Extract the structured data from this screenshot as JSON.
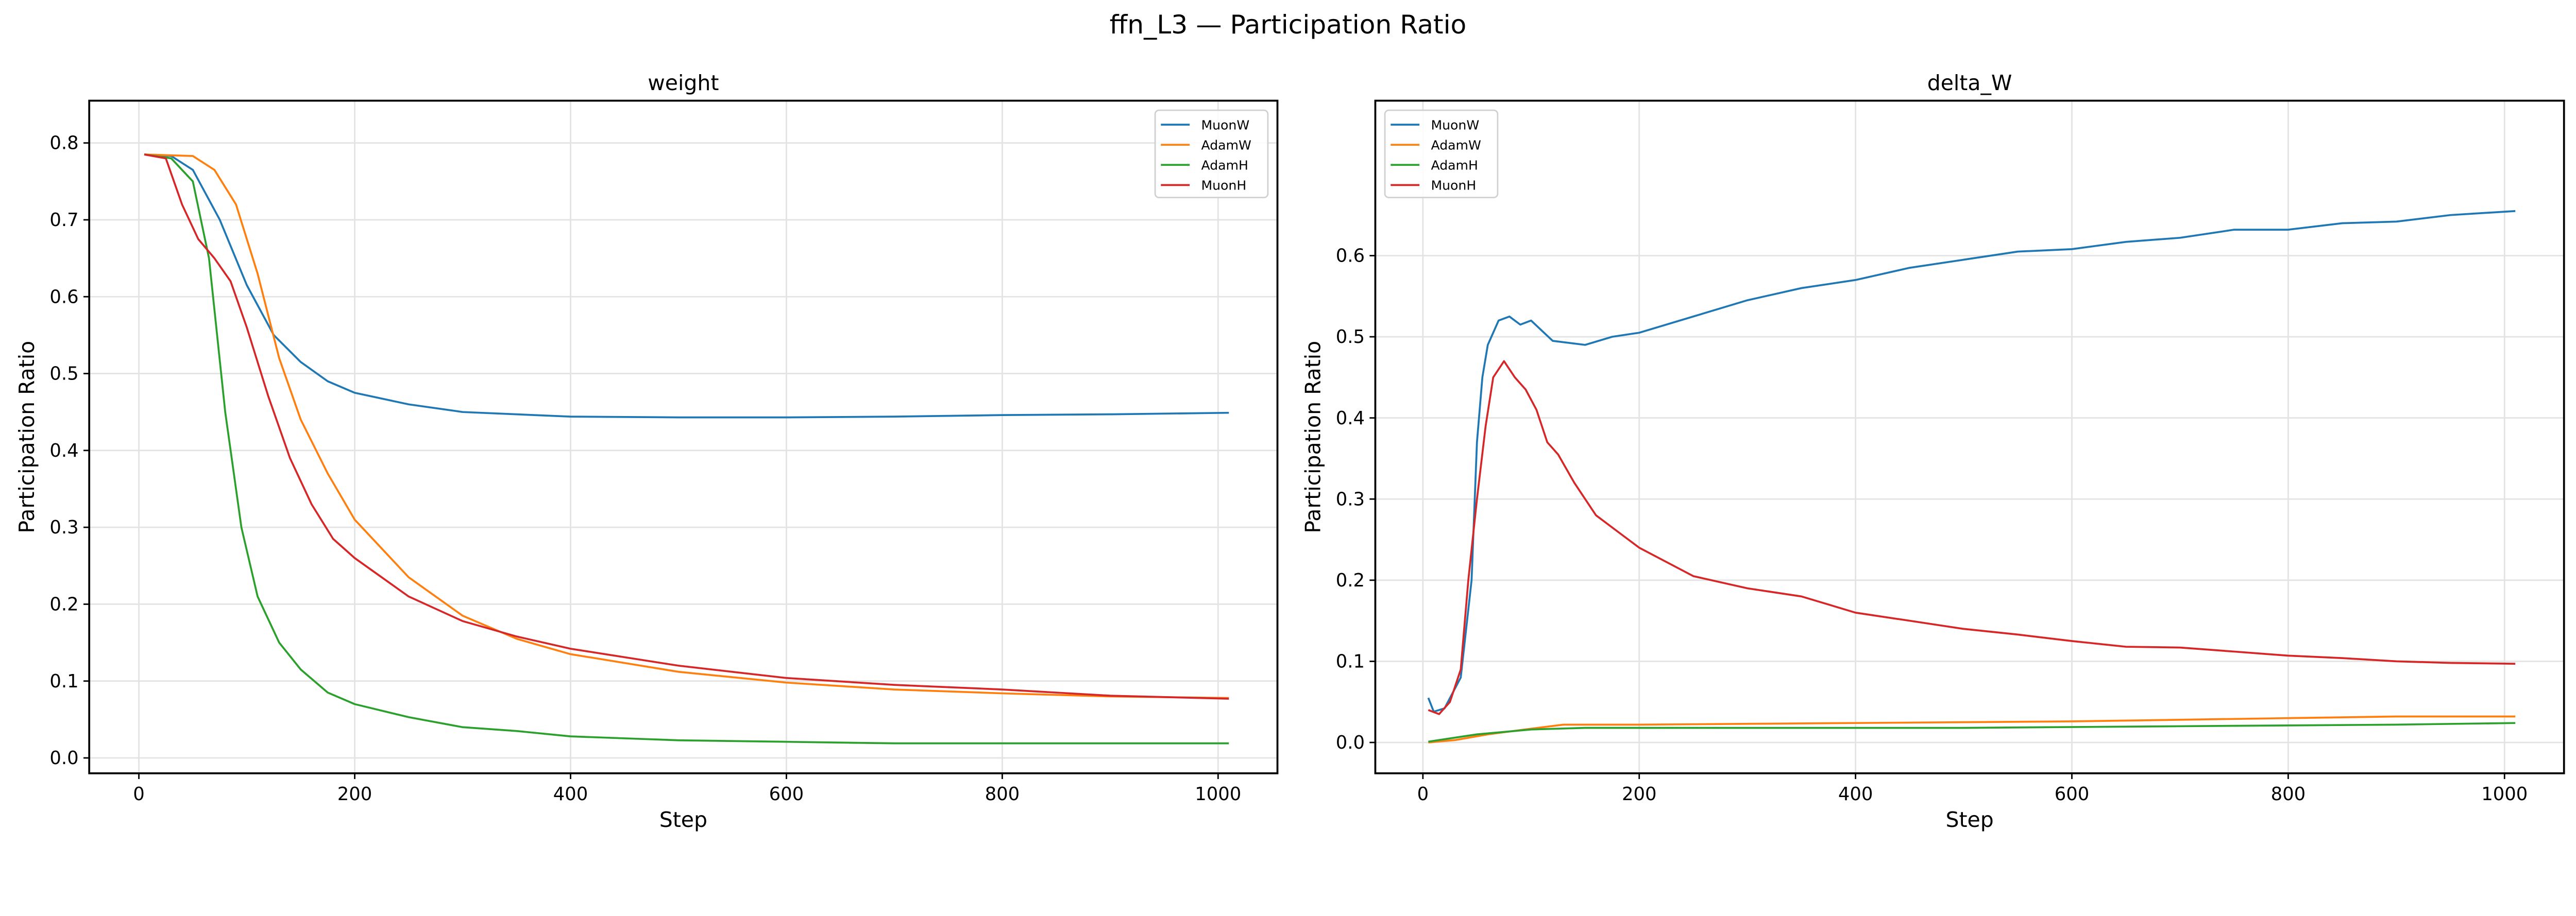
{
  "figure_title": "ffn_L3 — Participation Ratio",
  "chart_data": [
    {
      "type": "line",
      "title": "weight",
      "xlabel": "Step",
      "ylabel": "Participation Ratio",
      "xlim": [
        -46,
        1055
      ],
      "ylim": [
        -0.02,
        0.855
      ],
      "xticks": [
        0,
        200,
        400,
        600,
        800,
        1000
      ],
      "yticks": [
        0.0,
        0.1,
        0.2,
        0.3,
        0.4,
        0.5,
        0.6,
        0.7,
        0.8
      ],
      "ytick_format": 1,
      "grid": true,
      "legend": "top-right",
      "series": [
        {
          "name": "MuonW",
          "color": "#1f77b4",
          "x": [
            5,
            30,
            50,
            75,
            100,
            125,
            150,
            175,
            200,
            250,
            300,
            400,
            500,
            600,
            700,
            800,
            900,
            1010
          ],
          "y": [
            0.785,
            0.783,
            0.765,
            0.7,
            0.615,
            0.55,
            0.515,
            0.49,
            0.475,
            0.46,
            0.45,
            0.444,
            0.443,
            0.443,
            0.444,
            0.446,
            0.447,
            0.449
          ]
        },
        {
          "name": "AdamW",
          "color": "#ff7f0e",
          "x": [
            5,
            50,
            70,
            90,
            110,
            130,
            150,
            175,
            200,
            250,
            300,
            350,
            400,
            500,
            600,
            700,
            800,
            900,
            1010
          ],
          "y": [
            0.785,
            0.783,
            0.765,
            0.72,
            0.63,
            0.52,
            0.44,
            0.37,
            0.31,
            0.235,
            0.185,
            0.155,
            0.135,
            0.112,
            0.098,
            0.089,
            0.084,
            0.08,
            0.078
          ]
        },
        {
          "name": "AdamH",
          "color": "#2ca02c",
          "x": [
            5,
            30,
            50,
            65,
            80,
            95,
            110,
            130,
            150,
            175,
            200,
            250,
            300,
            350,
            400,
            500,
            600,
            700,
            800,
            1010
          ],
          "y": [
            0.785,
            0.78,
            0.75,
            0.65,
            0.45,
            0.3,
            0.21,
            0.15,
            0.115,
            0.085,
            0.07,
            0.053,
            0.04,
            0.035,
            0.028,
            0.023,
            0.021,
            0.019,
            0.019,
            0.019
          ]
        },
        {
          "name": "MuonH",
          "color": "#d62728",
          "x": [
            5,
            25,
            40,
            55,
            70,
            85,
            100,
            120,
            140,
            160,
            180,
            200,
            250,
            300,
            350,
            400,
            500,
            600,
            700,
            800,
            900,
            1010
          ],
          "y": [
            0.785,
            0.78,
            0.72,
            0.675,
            0.65,
            0.62,
            0.56,
            0.47,
            0.39,
            0.33,
            0.285,
            0.26,
            0.21,
            0.178,
            0.158,
            0.142,
            0.12,
            0.104,
            0.095,
            0.089,
            0.081,
            0.077
          ]
        }
      ]
    },
    {
      "type": "line",
      "title": "delta_W",
      "xlabel": "Step",
      "ylabel": "Participation Ratio",
      "xlim": [
        -44,
        1055
      ],
      "ylim": [
        -0.038,
        0.791
      ],
      "xticks": [
        0,
        200,
        400,
        600,
        800,
        1000
      ],
      "yticks": [
        0.0,
        0.1,
        0.2,
        0.3,
        0.4,
        0.5,
        0.6
      ],
      "ytick_format": 1,
      "grid": true,
      "legend": "top-left",
      "series": [
        {
          "name": "MuonW",
          "color": "#1f77b4",
          "x": [
            5,
            10,
            20,
            35,
            45,
            50,
            55,
            60,
            70,
            80,
            90,
            100,
            120,
            150,
            175,
            200,
            250,
            300,
            350,
            400,
            450,
            500,
            550,
            600,
            650,
            700,
            750,
            800,
            850,
            900,
            950,
            1010
          ],
          "y": [
            0.055,
            0.038,
            0.042,
            0.08,
            0.2,
            0.37,
            0.45,
            0.49,
            0.52,
            0.525,
            0.515,
            0.52,
            0.495,
            0.49,
            0.5,
            0.505,
            0.525,
            0.545,
            0.56,
            0.57,
            0.585,
            0.595,
            0.605,
            0.608,
            0.617,
            0.622,
            0.632,
            0.632,
            0.64,
            0.642,
            0.65,
            0.655
          ]
        },
        {
          "name": "AdamW",
          "color": "#ff7f0e",
          "x": [
            5,
            30,
            60,
            100,
            130,
            200,
            300,
            400,
            500,
            600,
            700,
            800,
            900,
            1010
          ],
          "y": [
            0.0,
            0.003,
            0.01,
            0.017,
            0.022,
            0.022,
            0.023,
            0.024,
            0.025,
            0.026,
            0.028,
            0.03,
            0.032,
            0.032
          ]
        },
        {
          "name": "AdamH",
          "color": "#2ca02c",
          "x": [
            5,
            50,
            100,
            150,
            300,
            500,
            700,
            900,
            1010
          ],
          "y": [
            0.001,
            0.01,
            0.016,
            0.018,
            0.018,
            0.018,
            0.02,
            0.022,
            0.024
          ]
        },
        {
          "name": "MuonH",
          "color": "#d62728",
          "x": [
            5,
            15,
            25,
            35,
            42,
            50,
            58,
            65,
            75,
            85,
            95,
            105,
            115,
            125,
            140,
            160,
            180,
            200,
            250,
            300,
            350,
            400,
            450,
            500,
            550,
            600,
            650,
            700,
            750,
            800,
            850,
            900,
            950,
            1010
          ],
          "y": [
            0.04,
            0.035,
            0.05,
            0.09,
            0.2,
            0.3,
            0.39,
            0.45,
            0.47,
            0.45,
            0.435,
            0.41,
            0.37,
            0.355,
            0.32,
            0.28,
            0.26,
            0.24,
            0.205,
            0.19,
            0.18,
            0.16,
            0.15,
            0.14,
            0.133,
            0.125,
            0.118,
            0.117,
            0.112,
            0.107,
            0.104,
            0.1,
            0.098,
            0.097
          ]
        }
      ]
    }
  ]
}
